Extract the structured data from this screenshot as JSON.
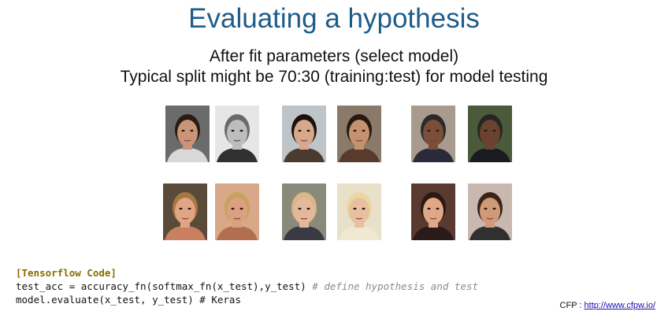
{
  "slide": {
    "title": "Evaluating a hypothesis",
    "subtitle_line1": "After fit parameters (select model)",
    "subtitle_line2": "Typical split might be 70:30 (training:test) for model testing"
  },
  "photos": [
    {
      "name": "face-man-1a",
      "skin": "#c99478",
      "hair": "#2a1c14",
      "bg": "#6b6b6b",
      "shirt": "#d8d8d8",
      "grayscale": false
    },
    {
      "name": "face-man-1b",
      "skin": "#bdbdbd",
      "hair": "#6a6a6a",
      "bg": "#e6e6e6",
      "shirt": "#303030",
      "grayscale": true
    },
    {
      "name": "face-woman-1a",
      "skin": "#d7a88c",
      "hair": "#1a1210",
      "bg": "#bfc4c8",
      "shirt": "#4a3a30",
      "grayscale": false
    },
    {
      "name": "face-woman-1b",
      "skin": "#c4926e",
      "hair": "#2a1810",
      "bg": "#8a7a6a",
      "shirt": "#5a3a2a",
      "grayscale": false
    },
    {
      "name": "face-man-2a",
      "skin": "#7a4e38",
      "hair": "#2a2a2a",
      "bg": "#a89a8c",
      "shirt": "#2a2a3a",
      "grayscale": false
    },
    {
      "name": "face-man-2b",
      "skin": "#6a4230",
      "hair": "#262626",
      "bg": "#4a5a3a",
      "shirt": "#1a1a22",
      "grayscale": false
    },
    {
      "name": "face-woman-2a",
      "skin": "#e0a584",
      "hair": "#a87840",
      "bg": "#5a4a3a",
      "shirt": "#c88060",
      "grayscale": false
    },
    {
      "name": "face-woman-2b",
      "skin": "#dba080",
      "hair": "#c8a060",
      "bg": "#d8a888",
      "shirt": "#b07050",
      "grayscale": false
    },
    {
      "name": "face-man-3a",
      "skin": "#e4b89a",
      "hair": "#d8b888",
      "bg": "#8a8a7a",
      "shirt": "#3a3a42",
      "grayscale": false
    },
    {
      "name": "face-man-3b",
      "skin": "#e8c0a0",
      "hair": "#e8d8a0",
      "bg": "#e8e0c8",
      "shirt": "#f0e8d0",
      "grayscale": false
    },
    {
      "name": "face-woman-3a",
      "skin": "#e0a888",
      "hair": "#2a1a12",
      "bg": "#5a3a30",
      "shirt": "#2a1a1a",
      "grayscale": false
    },
    {
      "name": "face-woman-3b",
      "skin": "#d09a78",
      "hair": "#3a2418",
      "bg": "#c8b8b0",
      "shirt": "#303030",
      "grayscale": false
    }
  ],
  "code": {
    "header": "[Tensorflow Code]",
    "line1_code": "test_acc = accuracy_fn(softmax_fn(x_test),y_test) ",
    "line1_comment": "# define hypothesis and test",
    "line2": "model.evaluate(x_test, y_test) # Keras"
  },
  "credit": {
    "prefix": "CFP : ",
    "link": "http://www.cfpw.io/"
  }
}
